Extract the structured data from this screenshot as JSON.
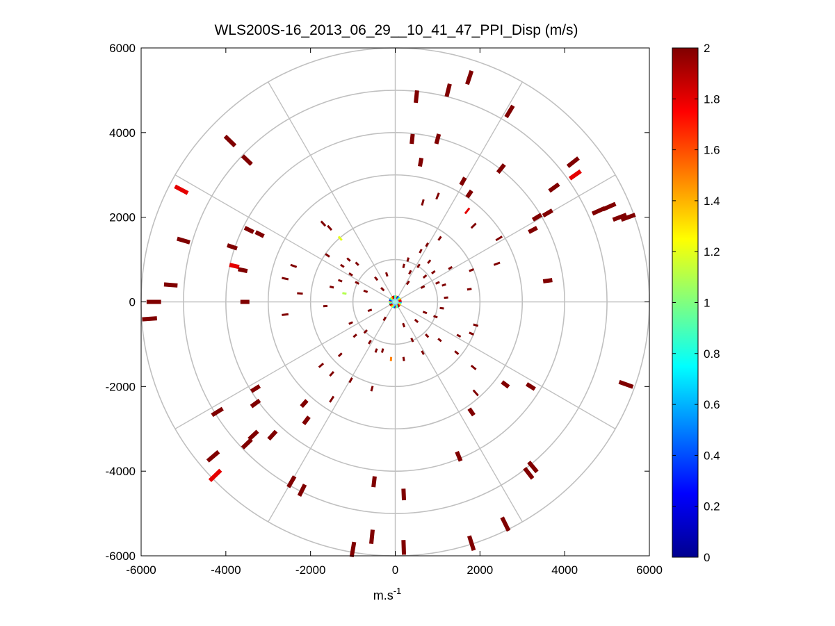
{
  "chart_data": {
    "type": "scatter",
    "subtype": "polar-ppi",
    "title": "WLS200S-16_2013_06_29__10_41_47_PPI_Disp (m/s)",
    "xlabel": "m.s",
    "xlabel_superscript": "-1",
    "ylabel": "",
    "xlim": [
      -6000,
      6000
    ],
    "ylim": [
      -6000,
      6000
    ],
    "xticks": [
      -6000,
      -4000,
      -2000,
      0,
      2000,
      4000,
      6000
    ],
    "yticks": [
      6000,
      4000,
      2000,
      0,
      -2000,
      -4000,
      -6000
    ],
    "xtick_labels": [
      "-6000",
      "-4000",
      "-2000",
      "0",
      "2000",
      "4000",
      "6000"
    ],
    "ytick_labels": [
      "6000",
      "4000",
      "2000",
      "0",
      "-2000",
      "-4000",
      "-6000"
    ],
    "range_rings_m": [
      1000,
      2000,
      3000,
      4000,
      5000,
      6000
    ],
    "spokes_deg": [
      0,
      30,
      60,
      90,
      120,
      150,
      180,
      210,
      240,
      270,
      300,
      330
    ],
    "colorbar": {
      "min": 0,
      "max": 2,
      "ticks": [
        0,
        0.2,
        0.4,
        0.6,
        0.8,
        1,
        1.2,
        1.4,
        1.6,
        1.8,
        2
      ],
      "tick_labels": [
        "0",
        "0.2",
        "0.4",
        "0.6",
        "0.8",
        "1",
        "1.2",
        "1.4",
        "1.6",
        "1.8",
        "2"
      ],
      "colormap": "jet"
    },
    "grid_color": "#c0c0c0",
    "points": [
      [
        -3900,
        3800,
        2
      ],
      [
        -3500,
        3350,
        2
      ],
      [
        -5050,
        2650,
        1.8
      ],
      [
        -5000,
        1450,
        2
      ],
      [
        -5300,
        400,
        2
      ],
      [
        -5700,
        0,
        2
      ],
      [
        -5800,
        -400,
        2
      ],
      [
        -3800,
        850,
        1.8
      ],
      [
        -3850,
        1300,
        2
      ],
      [
        -3450,
        1700,
        2
      ],
      [
        -3200,
        1600,
        2
      ],
      [
        -3600,
        750,
        2
      ],
      [
        -2400,
        850,
        2
      ],
      [
        -2600,
        550,
        2
      ],
      [
        -2250,
        200,
        2
      ],
      [
        -2600,
        -300,
        2
      ],
      [
        -3550,
        0,
        2
      ],
      [
        -1700,
        1850,
        2
      ],
      [
        -1550,
        1750,
        2
      ],
      [
        -1600,
        1100,
        2
      ],
      [
        -1500,
        350,
        2
      ],
      [
        -1650,
        -100,
        2
      ],
      [
        -1100,
        1000,
        2
      ],
      [
        -900,
        900,
        2
      ],
      [
        -1050,
        650,
        2
      ],
      [
        -900,
        450,
        2
      ],
      [
        -1300,
        500,
        2
      ],
      [
        -1250,
        850,
        2
      ],
      [
        -1050,
        -500,
        2
      ],
      [
        -950,
        -800,
        2
      ],
      [
        -700,
        -700,
        2
      ],
      [
        -600,
        -950,
        2
      ],
      [
        -450,
        -1150,
        2
      ],
      [
        -300,
        -1150,
        2
      ],
      [
        -1300,
        -1250,
        2
      ],
      [
        -1750,
        -1500,
        2
      ],
      [
        -1500,
        -1700,
        2
      ],
      [
        -1500,
        -2300,
        2
      ],
      [
        -1050,
        -1850,
        2
      ],
      [
        -550,
        -2050,
        2
      ],
      [
        -3300,
        -2050,
        2
      ],
      [
        -3300,
        -2400,
        2
      ],
      [
        -4200,
        -2600,
        2
      ],
      [
        -2150,
        -2400,
        2
      ],
      [
        -2100,
        -2800,
        2
      ],
      [
        -2900,
        -3150,
        2
      ],
      [
        -3500,
        -3350,
        2
      ],
      [
        -3350,
        -3150,
        2
      ],
      [
        -4300,
        -3650,
        2
      ],
      [
        -4250,
        -4100,
        1.8
      ],
      [
        -2450,
        -4250,
        2
      ],
      [
        -2200,
        -4450,
        2
      ],
      [
        -500,
        -4250,
        2
      ],
      [
        -550,
        -5550,
        2
      ],
      [
        -1000,
        -5850,
        2
      ],
      [
        200,
        -4550,
        2
      ],
      [
        200,
        -5800,
        2
      ],
      [
        1500,
        -3650,
        2
      ],
      [
        1800,
        -5700,
        2
      ],
      [
        2600,
        -5250,
        2
      ],
      [
        3150,
        -4050,
        2
      ],
      [
        3250,
        -3900,
        2
      ],
      [
        1800,
        -2600,
        2
      ],
      [
        1900,
        -2150,
        2
      ],
      [
        2600,
        -1950,
        2
      ],
      [
        3200,
        -2000,
        2
      ],
      [
        5450,
        -1950,
        2
      ],
      [
        1850,
        -1550,
        2
      ],
      [
        1450,
        -1200,
        2
      ],
      [
        1500,
        -800,
        2
      ],
      [
        1800,
        -750,
        2
      ],
      [
        1900,
        -550,
        2
      ],
      [
        3600,
        500,
        2
      ],
      [
        2400,
        900,
        2
      ],
      [
        1800,
        750,
        2
      ],
      [
        1750,
        300,
        2
      ],
      [
        1300,
        800,
        2
      ],
      [
        1150,
        400,
        2
      ],
      [
        3350,
        2000,
        2
      ],
      [
        3250,
        1700,
        2
      ],
      [
        3600,
        2100,
        2
      ],
      [
        3750,
        2700,
        2
      ],
      [
        4200,
        3300,
        2
      ],
      [
        4250,
        3000,
        1.8
      ],
      [
        4800,
        2150,
        2
      ],
      [
        5050,
        2250,
        2
      ],
      [
        5500,
        2000,
        2
      ],
      [
        5300,
        2000,
        2
      ],
      [
        2500,
        3150,
        2
      ],
      [
        2700,
        4500,
        2
      ],
      [
        1750,
        5300,
        2
      ],
      [
        1250,
        5000,
        2
      ],
      [
        500,
        4850,
        2
      ],
      [
        400,
        3850,
        2
      ],
      [
        1000,
        3850,
        2
      ],
      [
        600,
        3300,
        2
      ],
      [
        1600,
        2850,
        2
      ],
      [
        1750,
        2550,
        2
      ],
      [
        1000,
        2500,
        2
      ],
      [
        650,
        2350,
        2
      ],
      [
        1700,
        2150,
        1.8
      ],
      [
        1850,
        1800,
        2
      ],
      [
        2450,
        1500,
        2
      ],
      [
        1050,
        1500,
        2
      ],
      [
        750,
        1350,
        2
      ],
      [
        600,
        1200,
        2
      ],
      [
        300,
        1000,
        2
      ],
      [
        200,
        850,
        2
      ],
      [
        550,
        850,
        2
      ],
      [
        800,
        950,
        2
      ],
      [
        350,
        700,
        2
      ],
      [
        700,
        600,
        2
      ],
      [
        900,
        700,
        2
      ],
      [
        1000,
        450,
        2
      ],
      [
        650,
        350,
        2
      ],
      [
        300,
        450,
        2
      ],
      [
        -200,
        650,
        2
      ],
      [
        -450,
        550,
        2
      ],
      [
        -300,
        300,
        2
      ],
      [
        -700,
        250,
        2
      ],
      [
        -600,
        -200,
        2
      ],
      [
        -250,
        -400,
        2
      ],
      [
        200,
        -550,
        2
      ],
      [
        500,
        -450,
        2
      ],
      [
        700,
        -250,
        2
      ],
      [
        950,
        -350,
        2
      ],
      [
        1100,
        -150,
        2
      ],
      [
        1200,
        100,
        2
      ],
      [
        400,
        -900,
        2
      ],
      [
        750,
        -800,
        2
      ],
      [
        1050,
        -900,
        2
      ],
      [
        650,
        -1200,
        2
      ],
      [
        200,
        -1350,
        2
      ],
      [
        -1300,
        1500,
        1.2
      ],
      [
        -1200,
        200,
        1.1
      ],
      [
        -100,
        -1350,
        1.5
      ]
    ],
    "center_cluster_radius_m": 150
  }
}
